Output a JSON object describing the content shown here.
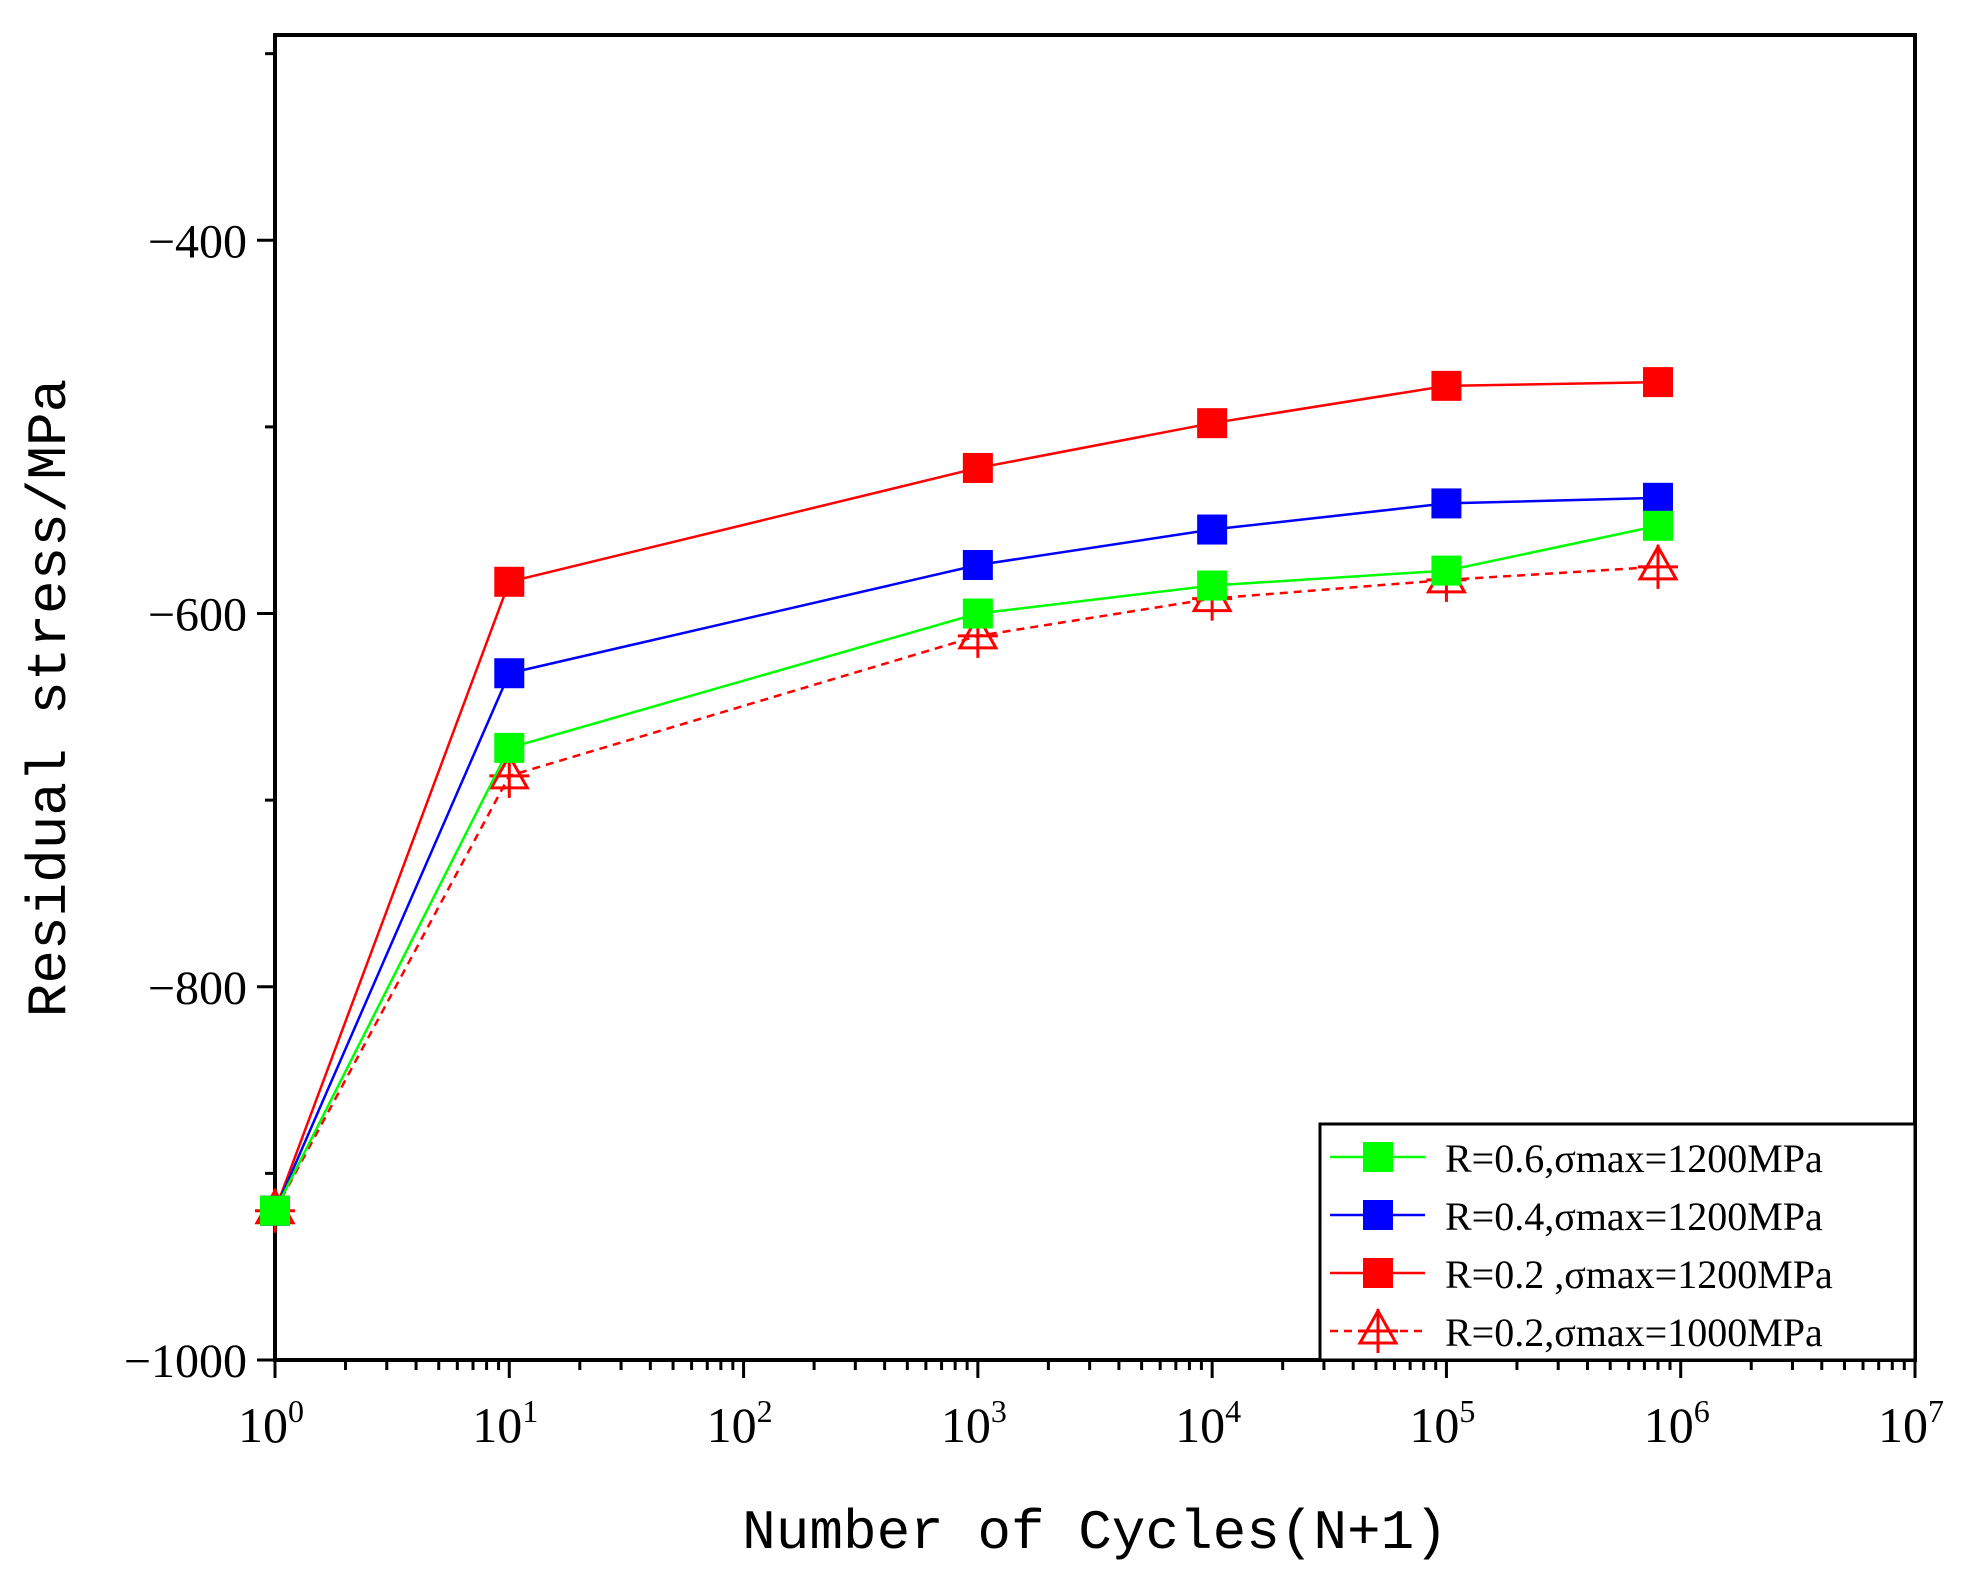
{
  "chart_data": {
    "type": "line",
    "title": "",
    "xlabel": "Number of Cycles(N+1)",
    "ylabel": "Residual stress/MPa",
    "x_scale": "log",
    "xlim": [
      1,
      10000000
    ],
    "ylim": [
      -1000,
      -290
    ],
    "grid": false,
    "legend_position": "bottom-right",
    "x_ticks": [
      {
        "value": 1,
        "base": "10",
        "exp": "0"
      },
      {
        "value": 10,
        "base": "10",
        "exp": "1"
      },
      {
        "value": 100,
        "base": "10",
        "exp": "2"
      },
      {
        "value": 1000,
        "base": "10",
        "exp": "3"
      },
      {
        "value": 10000,
        "base": "10",
        "exp": "4"
      },
      {
        "value": 100000,
        "base": "10",
        "exp": "5"
      },
      {
        "value": 1000000,
        "base": "10",
        "exp": "6"
      },
      {
        "value": 10000000,
        "base": "10",
        "exp": "7"
      }
    ],
    "y_ticks": [
      {
        "value": -1000,
        "label": "−1000"
      },
      {
        "value": -800,
        "label": "−800"
      },
      {
        "value": -600,
        "label": "−600"
      },
      {
        "value": -400,
        "label": "−400"
      }
    ],
    "x": [
      1,
      10,
      1000,
      10000,
      100000,
      800000
    ],
    "series": [
      {
        "name": "R=0.6,σmax=1200MPa",
        "color": "#00ff00",
        "marker": "square",
        "dashed": false,
        "values": [
          -920,
          -672,
          -600,
          -585,
          -577,
          -553
        ]
      },
      {
        "name": "R=0.4,σmax=1200MPa",
        "color": "#0000ff",
        "marker": "square",
        "dashed": false,
        "values": [
          -920,
          -632,
          -574,
          -555,
          -541,
          -538
        ]
      },
      {
        "name": "R=0.2 ,σmax=1200MPa",
        "color": "#ff0000",
        "marker": "square",
        "dashed": false,
        "values": [
          -920,
          -583,
          -522,
          -498,
          -478,
          -476
        ]
      },
      {
        "name": "R=0.2,σmax=1000MPa",
        "color": "#ff0000",
        "marker": "triangle-plus",
        "dashed": true,
        "values": [
          -920,
          -687,
          -612,
          -592,
          -582,
          -575
        ]
      }
    ]
  }
}
